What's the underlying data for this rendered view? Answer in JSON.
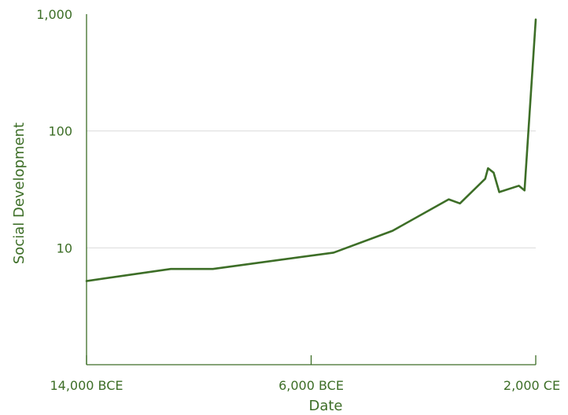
{
  "chart_data": {
    "type": "line",
    "title": "",
    "xlabel": "Date",
    "ylabel": "Social Development",
    "x_axis": {
      "ticks": [
        -14000,
        -6000,
        2000
      ],
      "tick_labels": [
        "14,000 BCE",
        "6,000 BCE",
        "2,000 CE"
      ],
      "range": [
        -14000,
        2000
      ]
    },
    "y_axis": {
      "scale": "log",
      "ticks": [
        10,
        100,
        1000
      ],
      "tick_labels": [
        "10",
        "100",
        "1,000"
      ],
      "range": [
        1,
        1000
      ]
    },
    "grid": "horizontal",
    "series": [
      {
        "color": "#3d6e27",
        "x": [
          -14000,
          -11000,
          -9500,
          -5200,
          -3100,
          -1100,
          -700,
          200,
          300,
          500,
          700,
          1400,
          1600
        ],
        "y": [
          5.2,
          6.6,
          6.6,
          9.1,
          14,
          26,
          24,
          39,
          48,
          44,
          30,
          34,
          31
        ]
      }
    ],
    "series_tail": {
      "x": [
        2000
      ],
      "y": [
        900
      ]
    }
  }
}
